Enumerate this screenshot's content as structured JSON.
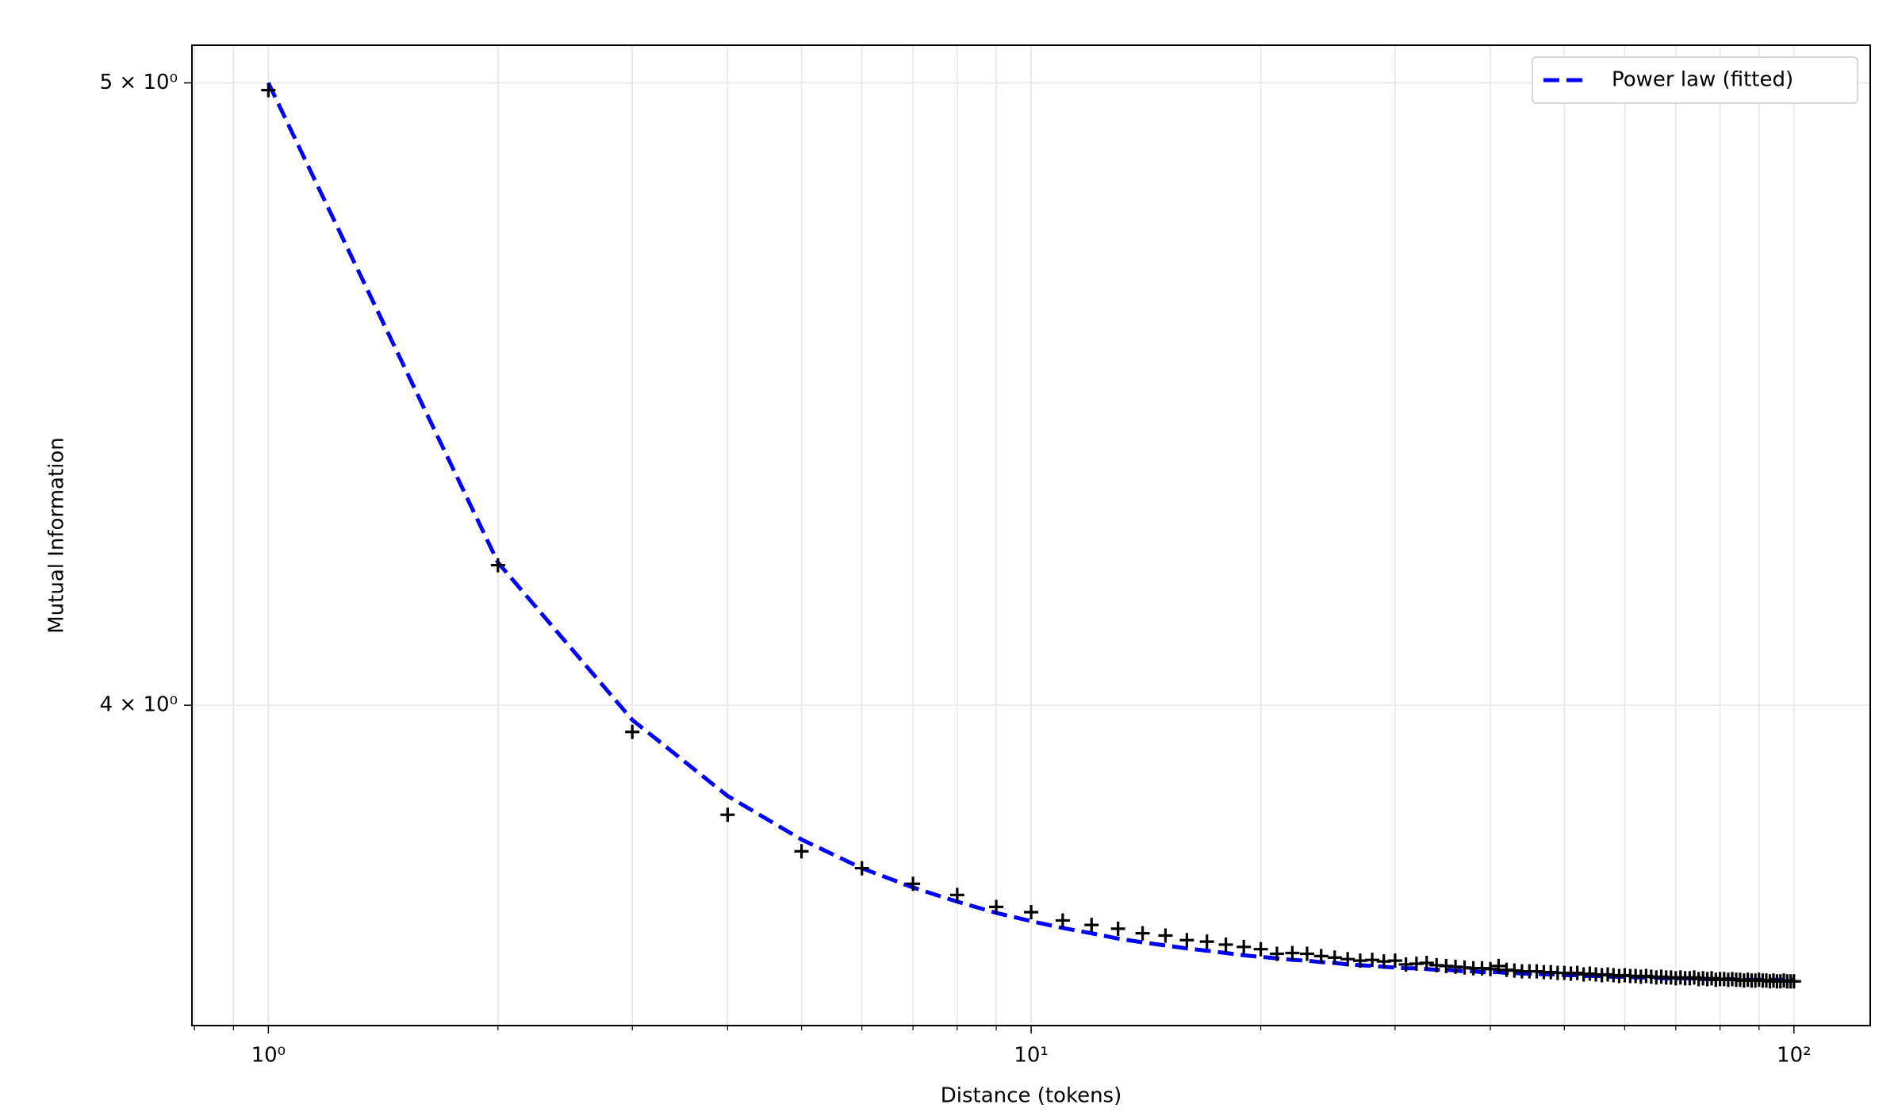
{
  "chart_data": {
    "type": "line",
    "x_label": "Distance (tokens)",
    "y_label": "Mutual Information",
    "xscale": "log",
    "yscale": "log",
    "grid": true,
    "legend": "upper right",
    "xlim": [
      0.794,
      125.9
    ],
    "ylim": [
      3.566,
      5.068
    ],
    "xticks": [
      {
        "value": 1,
        "label": "10⁰"
      },
      {
        "value": 10,
        "label": "10¹"
      },
      {
        "value": 100,
        "label": "10²"
      }
    ],
    "xminorticks": [
      0.8,
      0.9,
      2,
      3,
      4,
      5,
      6,
      7,
      8,
      9,
      20,
      30,
      40,
      50,
      60,
      70,
      80,
      90
    ],
    "yticks": [
      {
        "value": 4,
        "label": "4 × 10⁰"
      },
      {
        "value": 5,
        "label": "5 × 10⁰"
      }
    ],
    "x": [
      1,
      2,
      3,
      4,
      5,
      6,
      7,
      8,
      9,
      10,
      11,
      12,
      13,
      14,
      15,
      16,
      17,
      18,
      19,
      20,
      21,
      22,
      23,
      24,
      25,
      26,
      27,
      28,
      29,
      30,
      31,
      32,
      33,
      34,
      35,
      36,
      37,
      38,
      39,
      40,
      41,
      42,
      43,
      44,
      45,
      46,
      47,
      48,
      49,
      50,
      51,
      52,
      53,
      54,
      55,
      56,
      57,
      58,
      59,
      60,
      61,
      62,
      63,
      64,
      65,
      66,
      67,
      68,
      69,
      70,
      71,
      72,
      73,
      74,
      75,
      76,
      77,
      78,
      79,
      80,
      81,
      82,
      83,
      84,
      85,
      86,
      87,
      88,
      89,
      90,
      91,
      92,
      93,
      94,
      95,
      96,
      97,
      98,
      99,
      100
    ],
    "series": [
      {
        "name": "Power law (fitted)",
        "type": "line",
        "color": "#0000ff",
        "style": "dashed",
        "values": [
          5.0,
          4.21,
          3.979,
          3.872,
          3.812,
          3.773,
          3.747,
          3.728,
          3.713,
          3.702,
          3.693,
          3.686,
          3.679,
          3.674,
          3.67,
          3.666,
          3.663,
          3.66,
          3.657,
          3.655,
          3.653,
          3.651,
          3.65,
          3.648,
          3.647,
          3.645,
          3.644,
          3.643,
          3.642,
          3.641,
          3.64,
          3.64,
          3.639,
          3.638,
          3.638,
          3.637,
          3.636,
          3.636,
          3.635,
          3.635,
          3.635,
          3.634,
          3.634,
          3.633,
          3.633,
          3.633,
          3.632,
          3.632,
          3.632,
          3.631,
          3.631,
          3.631,
          3.63,
          3.63,
          3.63,
          3.63,
          3.629,
          3.629,
          3.629,
          3.629,
          3.629,
          3.628,
          3.628,
          3.628,
          3.628,
          3.628,
          3.627,
          3.627,
          3.627,
          3.627,
          3.627,
          3.627,
          3.627,
          3.626,
          3.626,
          3.626,
          3.626,
          3.626,
          3.626,
          3.626,
          3.626,
          3.626,
          3.626,
          3.625,
          3.625,
          3.625,
          3.625,
          3.625,
          3.625,
          3.625,
          3.625,
          3.625,
          3.625,
          3.625,
          3.625,
          3.625,
          3.625,
          3.625,
          3.625,
          3.625
        ]
      },
      {
        "type": "scatter",
        "color": "#000000",
        "marker": "+",
        "values": [
          4.987,
          4.206,
          3.962,
          3.846,
          3.796,
          3.773,
          3.752,
          3.737,
          3.721,
          3.714,
          3.703,
          3.697,
          3.692,
          3.686,
          3.683,
          3.677,
          3.675,
          3.671,
          3.668,
          3.665,
          3.659,
          3.66,
          3.659,
          3.656,
          3.654,
          3.652,
          3.65,
          3.651,
          3.649,
          3.65,
          3.645,
          3.646,
          3.647,
          3.644,
          3.643,
          3.642,
          3.641,
          3.64,
          3.64,
          3.639,
          3.643,
          3.638,
          3.637,
          3.636,
          3.636,
          3.636,
          3.635,
          3.635,
          3.634,
          3.634,
          3.633,
          3.634,
          3.632,
          3.633,
          3.632,
          3.631,
          3.632,
          3.631,
          3.63,
          3.631,
          3.63,
          3.63,
          3.629,
          3.63,
          3.629,
          3.628,
          3.629,
          3.628,
          3.628,
          3.627,
          3.628,
          3.627,
          3.627,
          3.628,
          3.626,
          3.627,
          3.626,
          3.627,
          3.625,
          3.626,
          3.626,
          3.625,
          3.626,
          3.625,
          3.625,
          3.624,
          3.625,
          3.624,
          3.624,
          3.625,
          3.624,
          3.624,
          3.623,
          3.624,
          3.623,
          3.623,
          3.624,
          3.623,
          3.623,
          3.623
        ]
      }
    ]
  }
}
